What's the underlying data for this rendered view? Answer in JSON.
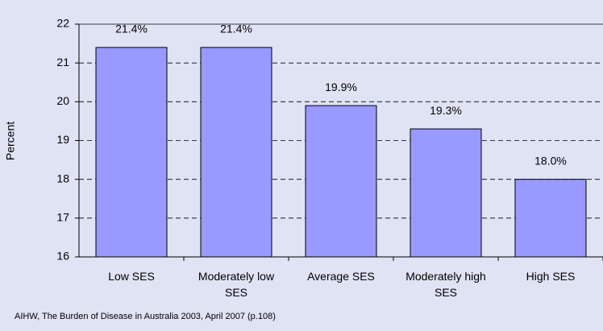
{
  "chart_data": {
    "type": "bar",
    "y_label": "Percent",
    "categories": [
      "Low SES",
      "Moderately low SES",
      "Average SES",
      "Moderately high SES",
      "High SES"
    ],
    "values": [
      21.4,
      21.4,
      19.9,
      19.3,
      18.0
    ],
    "value_labels": [
      "21.4%",
      "21.4%",
      "19.9%",
      "19.3%",
      "18.0%"
    ],
    "color": "#9999ff",
    "ylim": [
      16,
      22
    ],
    "yticks": [
      16,
      17,
      18,
      19,
      20,
      21,
      22
    ],
    "grid": true,
    "source": "AIHW, The Burden of Disease in Australia 2003, April 2007 (p.108)"
  }
}
